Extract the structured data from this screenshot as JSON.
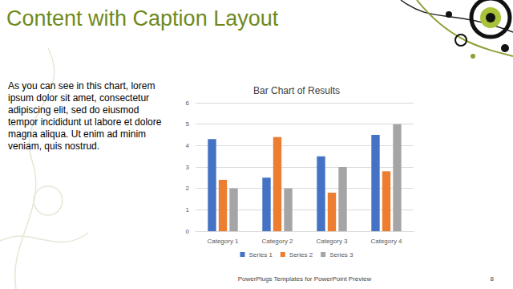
{
  "slide": {
    "title": "Content with Caption Layout",
    "body": "As you can see in this chart, lorem ipsum dolor sit amet, consectetur adipiscing elit, sed do eiusmod tempor incididunt ut labore et dolore magna aliqua. Ut enim ad minim veniam, quis nostrud.",
    "footer": "PowerPlugs Templates for PowerPoint Preview",
    "page_number": "8"
  },
  "chart_data": {
    "type": "bar",
    "title": "Bar Chart of Results",
    "categories": [
      "Category 1",
      "Category 2",
      "Category 3",
      "Category 4"
    ],
    "series": [
      {
        "name": "Series 1",
        "color": "#4472c4",
        "values": [
          4.3,
          2.5,
          3.5,
          4.5
        ]
      },
      {
        "name": "Series 2",
        "color": "#ed7d31",
        "values": [
          2.4,
          4.4,
          1.8,
          2.8
        ]
      },
      {
        "name": "Series 3",
        "color": "#a5a5a5",
        "values": [
          2.0,
          2.0,
          3.0,
          5.0
        ]
      }
    ],
    "ylim": [
      0,
      6
    ],
    "yticks": [
      0,
      1,
      2,
      3,
      4,
      5,
      6
    ],
    "grid": true,
    "legend": "bottom"
  }
}
